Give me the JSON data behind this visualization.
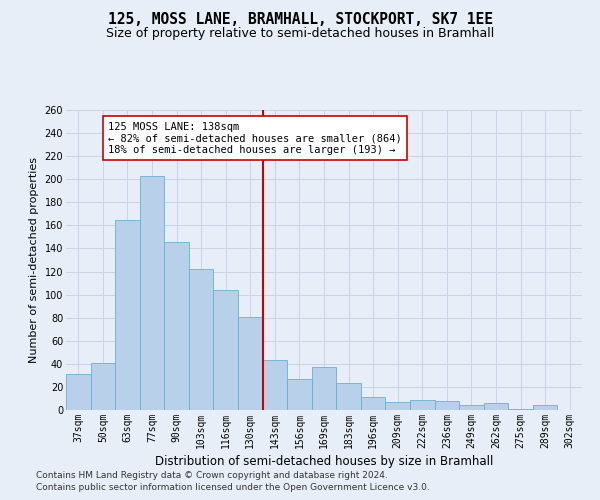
{
  "title": "125, MOSS LANE, BRAMHALL, STOCKPORT, SK7 1EE",
  "subtitle": "Size of property relative to semi-detached houses in Bramhall",
  "xlabel": "Distribution of semi-detached houses by size in Bramhall",
  "ylabel": "Number of semi-detached properties",
  "categories": [
    "37sqm",
    "50sqm",
    "63sqm",
    "77sqm",
    "90sqm",
    "103sqm",
    "116sqm",
    "130sqm",
    "143sqm",
    "156sqm",
    "169sqm",
    "183sqm",
    "196sqm",
    "209sqm",
    "222sqm",
    "236sqm",
    "249sqm",
    "262sqm",
    "275sqm",
    "289sqm",
    "302sqm"
  ],
  "values": [
    31,
    41,
    165,
    203,
    146,
    122,
    104,
    81,
    43,
    27,
    37,
    23,
    11,
    7,
    9,
    8,
    4,
    6,
    1,
    4,
    0
  ],
  "bar_color": "#b8d0ea",
  "bar_edge_color": "#6aaed6",
  "grid_color": "#c8d4e8",
  "background_color": "#e8eef8",
  "vline_x_index": 8,
  "vline_color": "#cc0000",
  "annotation_text": "125 MOSS LANE: 138sqm\n← 82% of semi-detached houses are smaller (864)\n18% of semi-detached houses are larger (193) →",
  "annotation_box_color": "#ffffff",
  "annotation_box_edge": "#cc0000",
  "ylim": [
    0,
    260
  ],
  "yticks": [
    0,
    20,
    40,
    60,
    80,
    100,
    120,
    140,
    160,
    180,
    200,
    220,
    240,
    260
  ],
  "footer_line1": "Contains HM Land Registry data © Crown copyright and database right 2024.",
  "footer_line2": "Contains public sector information licensed under the Open Government Licence v3.0.",
  "title_fontsize": 10.5,
  "subtitle_fontsize": 9,
  "xlabel_fontsize": 8.5,
  "ylabel_fontsize": 8,
  "tick_fontsize": 7,
  "annotation_fontsize": 7.5,
  "footer_fontsize": 6.5
}
